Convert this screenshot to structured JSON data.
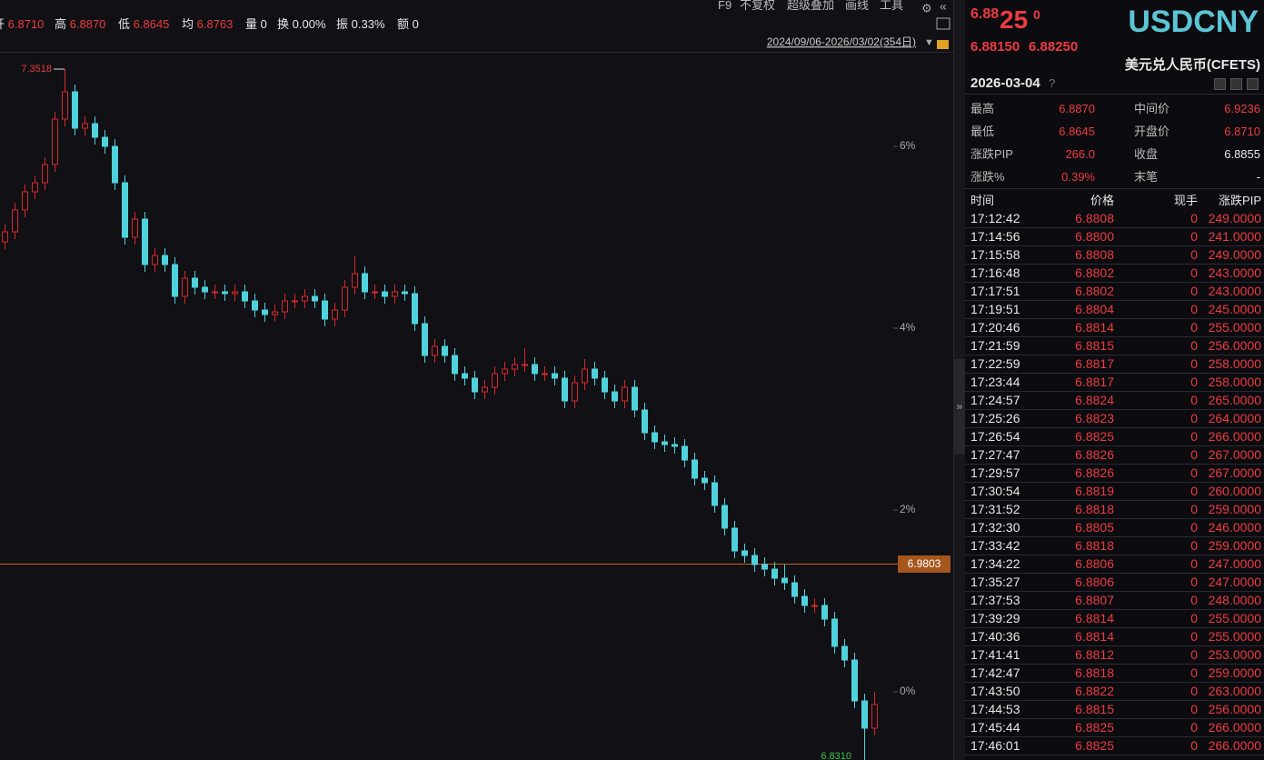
{
  "toolbar": [
    "F9",
    "不复权",
    "超级叠加",
    "画线",
    "工具"
  ],
  "info_bar": [
    {
      "label": "开",
      "value": "6.8710"
    },
    {
      "label": "高",
      "value": "6.8870"
    },
    {
      "label": "低",
      "value": "6.8645"
    },
    {
      "label": "均",
      "value": "6.8763"
    },
    {
      "label": "量",
      "value": "0"
    },
    {
      "label": "换",
      "value": "0.00%"
    },
    {
      "label": "振",
      "value": "0.33%"
    },
    {
      "label": "额",
      "value": "0"
    }
  ],
  "chart_data": {
    "type": "candlestick",
    "date_range": "2024/09/06-2026/03/02(354日)",
    "ylim": [
      -0.75,
      7.04
    ],
    "yticks": [
      {
        "value": 0,
        "label": "0%"
      },
      {
        "value": 2,
        "label": "2%"
      },
      {
        "value": 4,
        "label": "4%"
      },
      {
        "value": 6,
        "label": "6%"
      }
    ],
    "grid": false,
    "up_color": "#d42a2a",
    "down_color": "#4fd2dc",
    "high_label": "7.3518",
    "low_label": "6.8310",
    "price_line_label": "6.9803",
    "open": [
      4.95,
      5.06,
      5.3,
      5.5,
      5.6,
      5.8,
      6.3,
      6.6,
      6.2,
      6.25,
      6.1,
      6.0,
      5.6,
      5.0,
      5.2,
      4.7,
      4.8,
      4.7,
      4.35,
      4.55,
      4.45,
      4.4,
      4.4,
      4.38,
      4.4,
      4.3,
      4.2,
      4.15,
      4.18,
      4.3,
      4.3,
      4.35,
      4.3,
      4.1,
      4.2,
      4.45,
      4.6,
      4.4,
      4.4,
      4.35,
      4.4,
      4.38,
      4.05,
      3.7,
      3.8,
      3.7,
      3.5,
      3.45,
      3.3,
      3.35,
      3.5,
      3.55,
      3.6,
      3.6,
      3.5,
      3.5,
      3.45,
      3.2,
      3.4,
      3.55,
      3.45,
      3.3,
      3.2,
      3.35,
      3.1,
      2.85,
      2.75,
      2.72,
      2.7,
      2.55,
      2.35,
      2.3,
      2.05,
      1.8,
      1.55,
      1.5,
      1.4,
      1.35,
      1.25,
      1.2,
      1.05,
      0.95,
      0.95,
      0.8,
      0.5,
      0.35,
      -0.1,
      -0.4
    ],
    "high": [
      5.14,
      5.38,
      5.58,
      5.68,
      5.88,
      6.38,
      6.85,
      6.68,
      6.33,
      6.33,
      6.18,
      6.08,
      5.68,
      5.28,
      5.28,
      4.88,
      4.88,
      4.78,
      4.63,
      4.63,
      4.53,
      4.48,
      4.48,
      4.48,
      4.48,
      4.38,
      4.28,
      4.26,
      4.38,
      4.38,
      4.43,
      4.43,
      4.38,
      4.28,
      4.53,
      4.8,
      4.68,
      4.48,
      4.48,
      4.48,
      4.48,
      4.46,
      4.13,
      3.88,
      3.88,
      3.78,
      3.58,
      3.53,
      3.43,
      3.58,
      3.63,
      3.68,
      3.78,
      3.68,
      3.58,
      3.58,
      3.53,
      3.48,
      3.66,
      3.63,
      3.53,
      3.38,
      3.43,
      3.43,
      3.18,
      2.93,
      2.83,
      2.8,
      2.78,
      2.63,
      2.43,
      2.38,
      2.13,
      1.88,
      1.63,
      1.58,
      1.48,
      1.43,
      1.4,
      1.28,
      1.13,
      1.03,
      1.03,
      0.88,
      0.58,
      0.43,
      -0.02,
      0.0
    ],
    "low": [
      4.87,
      4.98,
      5.22,
      5.42,
      5.52,
      5.72,
      6.22,
      6.12,
      6.12,
      6.02,
      5.92,
      5.52,
      4.92,
      4.92,
      4.62,
      4.62,
      4.62,
      4.27,
      4.27,
      4.37,
      4.32,
      4.32,
      4.3,
      4.3,
      4.22,
      4.12,
      4.07,
      4.07,
      4.1,
      4.22,
      4.22,
      4.22,
      4.02,
      4.02,
      4.12,
      4.37,
      4.32,
      4.32,
      4.27,
      4.27,
      4.3,
      3.97,
      3.62,
      3.62,
      3.62,
      3.42,
      3.37,
      3.22,
      3.22,
      3.27,
      3.42,
      3.47,
      3.52,
      3.42,
      3.42,
      3.37,
      3.12,
      3.12,
      3.32,
      3.37,
      3.22,
      3.12,
      3.12,
      3.02,
      2.77,
      2.67,
      2.64,
      2.62,
      2.47,
      2.27,
      2.22,
      1.97,
      1.72,
      1.47,
      1.42,
      1.32,
      1.27,
      1.17,
      1.12,
      0.97,
      0.87,
      0.87,
      0.72,
      0.42,
      0.27,
      -0.18,
      -0.75,
      -0.48
    ],
    "close": [
      5.06,
      5.3,
      5.5,
      5.6,
      5.8,
      6.3,
      6.6,
      6.2,
      6.25,
      6.1,
      6.0,
      5.6,
      5.0,
      5.2,
      4.7,
      4.8,
      4.7,
      4.35,
      4.55,
      4.45,
      4.4,
      4.4,
      4.38,
      4.4,
      4.3,
      4.2,
      4.15,
      4.18,
      4.3,
      4.3,
      4.35,
      4.3,
      4.1,
      4.2,
      4.45,
      4.6,
      4.4,
      4.4,
      4.35,
      4.4,
      4.38,
      4.05,
      3.7,
      3.8,
      3.7,
      3.5,
      3.45,
      3.3,
      3.35,
      3.5,
      3.55,
      3.6,
      3.6,
      3.5,
      3.5,
      3.45,
      3.2,
      3.4,
      3.55,
      3.45,
      3.3,
      3.2,
      3.35,
      3.1,
      2.85,
      2.75,
      2.72,
      2.7,
      2.55,
      2.35,
      2.3,
      2.05,
      1.8,
      1.55,
      1.5,
      1.4,
      1.35,
      1.25,
      1.2,
      1.05,
      0.95,
      0.95,
      0.8,
      0.5,
      0.35,
      -0.1,
      -0.4,
      -0.14
    ]
  },
  "quote": {
    "price_head": "6.88",
    "price_big": "25",
    "price_tail": "0",
    "symbol": "USDCNY",
    "bid": "6.88150",
    "ask": "6.88250",
    "name": "美元兑人民币(CFETS)",
    "date": "2026-03-04",
    "help": "?",
    "rows": [
      [
        "最高",
        "6.8870",
        "中间价",
        "6.9236"
      ],
      [
        "最低",
        "6.8645",
        "开盘价",
        "6.8710"
      ],
      [
        "涨跌PIP",
        "266.0",
        "收盘",
        "6.8855"
      ],
      [
        "涨跌%",
        "0.39%",
        "末笔",
        "-"
      ]
    ]
  },
  "ticks": {
    "header": [
      "时间",
      "价格",
      "现手",
      "涨跌PIP"
    ],
    "rows": [
      [
        "17:12:42",
        "6.8808",
        "0",
        "249.0000"
      ],
      [
        "17:14:56",
        "6.8800",
        "0",
        "241.0000"
      ],
      [
        "17:15:58",
        "6.8808",
        "0",
        "249.0000"
      ],
      [
        "17:16:48",
        "6.8802",
        "0",
        "243.0000"
      ],
      [
        "17:17:51",
        "6.8802",
        "0",
        "243.0000"
      ],
      [
        "17:19:51",
        "6.8804",
        "0",
        "245.0000"
      ],
      [
        "17:20:46",
        "6.8814",
        "0",
        "255.0000"
      ],
      [
        "17:21:59",
        "6.8815",
        "0",
        "256.0000"
      ],
      [
        "17:22:59",
        "6.8817",
        "0",
        "258.0000"
      ],
      [
        "17:23:44",
        "6.8817",
        "0",
        "258.0000"
      ],
      [
        "17:24:57",
        "6.8824",
        "0",
        "265.0000"
      ],
      [
        "17:25:26",
        "6.8823",
        "0",
        "264.0000"
      ],
      [
        "17:26:54",
        "6.8825",
        "0",
        "266.0000"
      ],
      [
        "17:27:47",
        "6.8826",
        "0",
        "267.0000"
      ],
      [
        "17:29:57",
        "6.8826",
        "0",
        "267.0000"
      ],
      [
        "17:30:54",
        "6.8819",
        "0",
        "260.0000"
      ],
      [
        "17:31:52",
        "6.8818",
        "0",
        "259.0000"
      ],
      [
        "17:32:30",
        "6.8805",
        "0",
        "246.0000"
      ],
      [
        "17:33:42",
        "6.8818",
        "0",
        "259.0000"
      ],
      [
        "17:34:22",
        "6.8806",
        "0",
        "247.0000"
      ],
      [
        "17:35:27",
        "6.8806",
        "0",
        "247.0000"
      ],
      [
        "17:37:53",
        "6.8807",
        "0",
        "248.0000"
      ],
      [
        "17:39:29",
        "6.8814",
        "0",
        "255.0000"
      ],
      [
        "17:40:36",
        "6.8814",
        "0",
        "255.0000"
      ],
      [
        "17:41:41",
        "6.8812",
        "0",
        "253.0000"
      ],
      [
        "17:42:47",
        "6.8818",
        "0",
        "259.0000"
      ],
      [
        "17:43:50",
        "6.8822",
        "0",
        "263.0000"
      ],
      [
        "17:44:53",
        "6.8815",
        "0",
        "256.0000"
      ],
      [
        "17:45:44",
        "6.8825",
        "0",
        "266.0000"
      ],
      [
        "17:46:01",
        "6.8825",
        "0",
        "266.0000"
      ]
    ]
  }
}
